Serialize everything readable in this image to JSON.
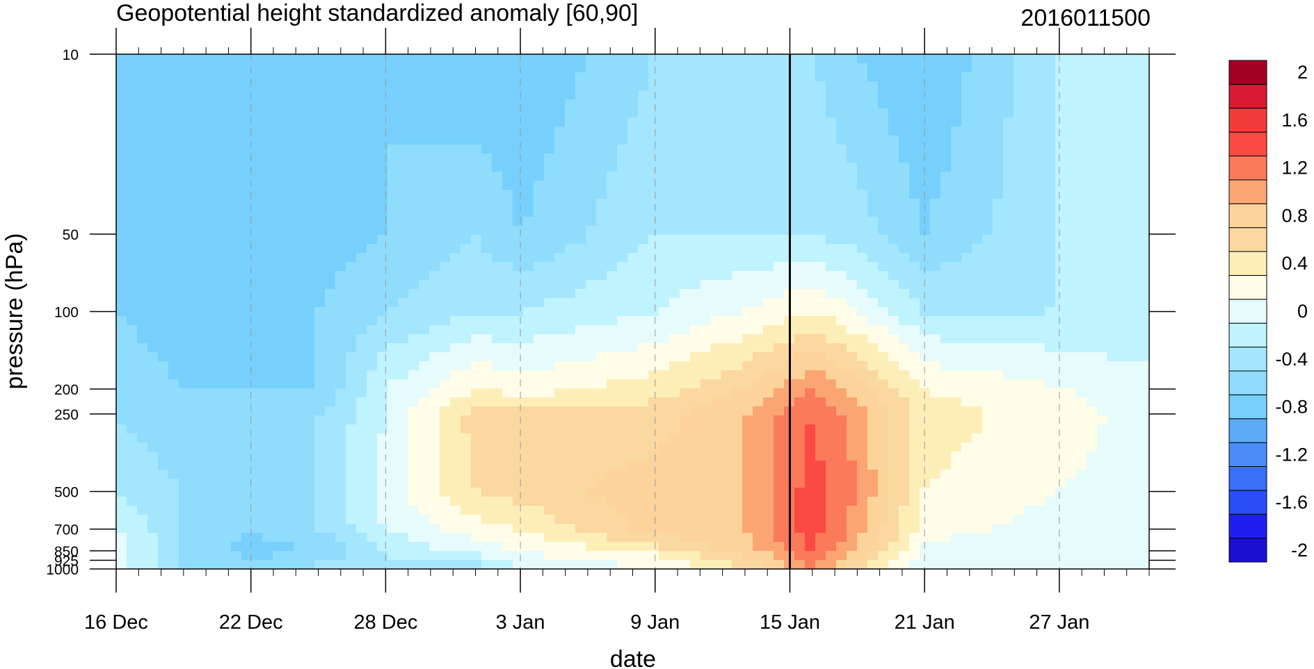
{
  "chart_data": {
    "type": "contour",
    "title": "Geopotential height standardized anomaly [60,90]",
    "right_title": "2016011500",
    "xlabel": "date",
    "ylabel": "pressure (hPa)",
    "y_scale": "log",
    "y_reversed": true,
    "ylim": [
      1000,
      10
    ],
    "y_ticks": [
      {
        "value": 10,
        "label": "10"
      },
      {
        "value": 50,
        "label": "50"
      },
      {
        "value": 100,
        "label": "100"
      },
      {
        "value": 200,
        "label": "200"
      },
      {
        "value": 250,
        "label": "250"
      },
      {
        "value": 500,
        "label": "500"
      },
      {
        "value": 700,
        "label": "700"
      },
      {
        "value": 850,
        "label": "850"
      },
      {
        "value": 925,
        "label": "925"
      },
      {
        "value": 1000,
        "label": "1000"
      }
    ],
    "xlim": [
      "2015-12-16",
      "2016-01-31"
    ],
    "x_ticks": [
      {
        "date": "2015-12-16",
        "label": "16 Dec"
      },
      {
        "date": "2015-12-22",
        "label": "22 Dec"
      },
      {
        "date": "2015-12-28",
        "label": "28 Dec"
      },
      {
        "date": "2016-01-03",
        "label": "3 Jan"
      },
      {
        "date": "2016-01-09",
        "label": "9 Jan"
      },
      {
        "date": "2016-01-15",
        "label": "15 Jan"
      },
      {
        "date": "2016-01-21",
        "label": "21 Jan"
      },
      {
        "date": "2016-01-27",
        "label": "27 Jan"
      }
    ],
    "current_date_marker": "2016-01-15",
    "dashed_verticals": [
      "2015-12-22",
      "2015-12-28",
      "2016-01-03",
      "2016-01-09",
      "2016-01-21",
      "2016-01-27"
    ],
    "levels": [
      -2.0,
      -1.8,
      -1.6,
      -1.4,
      -1.2,
      -1.0,
      -0.8,
      -0.6,
      -0.4,
      -0.2,
      0.0,
      0.2,
      0.4,
      0.6,
      0.8,
      1.0,
      1.2,
      1.4,
      1.6,
      1.8,
      2.0
    ],
    "colorbar": {
      "colors": [
        "#1a0fd1",
        "#1e1ef0",
        "#2a4ef5",
        "#3a6ff7",
        "#4a8df7",
        "#5aaaf6",
        "#76d0fb",
        "#8fdcfd",
        "#a4e6fd",
        "#bff3fd",
        "#e6fbfc",
        "#fffde8",
        "#fdeeb8",
        "#fbd8a0",
        "#fcd39a",
        "#fba573",
        "#fb7a5a",
        "#fb4a43",
        "#f23c3c",
        "#d91a33",
        "#a50026"
      ],
      "labels": [
        {
          "value": 2,
          "text": "2"
        },
        {
          "value": 1.6,
          "text": "1.6"
        },
        {
          "value": 1.2,
          "text": "1.2"
        },
        {
          "value": 0.8,
          "text": "0.8"
        },
        {
          "value": 0.4,
          "text": "0.4"
        },
        {
          "value": 0,
          "text": "0"
        },
        {
          "value": -0.4,
          "text": "-0.4"
        },
        {
          "value": -0.8,
          "text": "-0.8"
        },
        {
          "value": -1.2,
          "text": "-1.2"
        },
        {
          "value": -1.6,
          "text": "-1.6"
        },
        {
          "value": -2,
          "text": "-2"
        }
      ]
    },
    "fields": [
      {
        "date": "2015-12-16",
        "anom": {
          "10": -0.8,
          "50": -0.8,
          "100": -0.6,
          "200": -0.4,
          "250": -0.4,
          "500": -0.2,
          "700": 0.0,
          "850": 0.1,
          "925": 0.1,
          "1000": 0.1
        }
      },
      {
        "date": "2015-12-19",
        "anom": {
          "10": -0.8,
          "50": -0.8,
          "100": -0.8,
          "200": -0.6,
          "250": -0.6,
          "500": -0.4,
          "700": -0.4,
          "850": -0.4,
          "925": -0.4,
          "1000": -0.4
        }
      },
      {
        "date": "2015-12-22",
        "anom": {
          "10": -0.6,
          "50": -0.8,
          "100": -0.8,
          "200": -0.6,
          "250": -0.6,
          "500": -0.6,
          "700": -0.6,
          "850": -0.7,
          "925": -0.6,
          "1000": -0.6
        }
      },
      {
        "date": "2015-12-25",
        "anom": {
          "10": -0.6,
          "50": -0.7,
          "100": -0.6,
          "200": -0.6,
          "250": -0.4,
          "500": -0.4,
          "700": -0.4,
          "850": -0.6,
          "925": -0.4,
          "1000": -0.4
        }
      },
      {
        "date": "2015-12-28",
        "anom": {
          "10": -0.6,
          "50": -0.6,
          "100": -0.4,
          "200": 0.0,
          "250": 0.0,
          "500": 0.1,
          "700": 0.0,
          "850": -0.2,
          "925": -0.2,
          "1000": -0.2
        }
      },
      {
        "date": "2016-01-01",
        "anom": {
          "10": -0.8,
          "50": -0.4,
          "100": -0.2,
          "200": 0.4,
          "250": 0.7,
          "500": 0.6,
          "700": 0.3,
          "850": 0.1,
          "925": -0.2,
          "1000": -0.3
        }
      },
      {
        "date": "2016-01-03",
        "anom": {
          "10": -0.8,
          "50": -0.6,
          "100": -0.2,
          "200": 0.3,
          "250": 0.7,
          "500": 0.7,
          "700": 0.4,
          "850": 0.2,
          "925": 0.1,
          "1000": 0.0
        }
      },
      {
        "date": "2016-01-09",
        "anom": {
          "10": -0.4,
          "50": -0.2,
          "100": 0.0,
          "200": 0.5,
          "250": 0.7,
          "500": 0.9,
          "700": 0.9,
          "850": 0.5,
          "925": 0.3,
          "1000": 0.2
        }
      },
      {
        "date": "2016-01-13",
        "anom": {
          "10": -0.4,
          "50": -0.2,
          "100": 0.2,
          "200": 0.8,
          "250": 1.0,
          "500": 1.0,
          "700": 1.0,
          "850": 0.9,
          "925": 0.7,
          "1000": 0.6
        }
      },
      {
        "date": "2016-01-16",
        "anom": {
          "10": -0.4,
          "50": -0.2,
          "100": 0.4,
          "200": 1.2,
          "250": 1.4,
          "500": 1.5,
          "700": 1.5,
          "850": 1.4,
          "925": 1.3,
          "1000": 1.2
        }
      },
      {
        "date": "2016-01-18",
        "anom": {
          "10": -0.6,
          "50": -0.3,
          "100": 0.2,
          "200": 0.9,
          "250": 1.1,
          "500": 1.2,
          "700": 1.1,
          "850": 1.0,
          "925": 0.8,
          "1000": 0.6
        }
      },
      {
        "date": "2016-01-21",
        "anom": {
          "10": -0.8,
          "50": -0.6,
          "100": -0.2,
          "200": 0.4,
          "250": 0.5,
          "500": 0.4,
          "700": 0.3,
          "850": 0.1,
          "925": 0.1,
          "1000": 0.1
        }
      },
      {
        "date": "2016-01-27",
        "anom": {
          "10": -0.2,
          "50": -0.2,
          "100": -0.2,
          "200": 0.2,
          "250": 0.3,
          "500": 0.2,
          "700": 0.1,
          "850": 0.1,
          "925": 0.0,
          "1000": 0.0
        }
      },
      {
        "date": "2016-01-31",
        "anom": {
          "10": -0.2,
          "50": -0.2,
          "100": -0.2,
          "200": 0.1,
          "250": 0.1,
          "500": 0.1,
          "700": 0.1,
          "850": 0.1,
          "925": 0.1,
          "1000": 0.1
        }
      }
    ]
  }
}
